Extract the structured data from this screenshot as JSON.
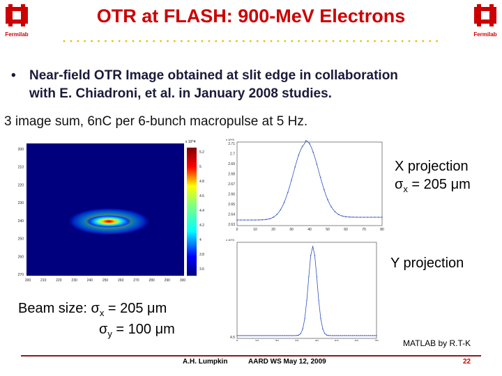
{
  "slide": {
    "title": "OTR at FLASH: 900-MeV Electrons",
    "logo_text": "Fermilab",
    "bullet": "Near-field OTR Image obtained at slit edge in collaboration with E. Chiadroni, et al. in January 2008 studies.",
    "bullet_line1": "Near-field OTR Image obtained at slit edge in collaboration",
    "bullet_line2": "with E. Chiadroni, et al. in January 2008 studies.",
    "subline": "3 image sum, 6nC per 6-bunch macropulse at 5 Hz.",
    "x_projection_label": "X projection",
    "x_sigma": "σx = 205 μm",
    "y_projection_label": "Y projection",
    "beam_size_label": "Beam size: σx = 205 μm",
    "beam_size_y": "σy = 100 μm",
    "matlab_credit": "MATLAB by R.T-K",
    "footer_author": "A.H. Lumpkin",
    "footer_event": "AARD WS May 12, 2009",
    "page_number": "22"
  },
  "colors": {
    "title": "#cc0000",
    "footer_rule": "#8b1a1a",
    "dot": "#e6c000",
    "jet_background": "#00007f"
  },
  "image_plot": {
    "y_ticks": [
      "200",
      "210",
      "220",
      "230",
      "240",
      "250",
      "260",
      "270"
    ],
    "x_ticks": [
      "200",
      "210",
      "220",
      "230",
      "240",
      "250",
      "260",
      "270",
      "280",
      "290",
      "300"
    ],
    "colorbar_exponent": "x 10^4",
    "colorbar_ticks": [
      "5.2",
      "5",
      "4.8",
      "4.6",
      "4.4",
      "4.2",
      "4",
      "3.8",
      "3.6"
    ]
  },
  "x_projection_plot": {
    "exponent": "x 10^5",
    "y_ticks": [
      "2.71",
      "2.7",
      "2.69",
      "2.68",
      "2.67",
      "2.66",
      "2.65",
      "2.64",
      "2.63"
    ],
    "x_ticks": [
      "0",
      "10",
      "20",
      "30",
      "40",
      "50",
      "60",
      "70",
      "80"
    ]
  },
  "y_projection_plot": {
    "exponent": "x 10^5",
    "y_ticks": [
      "",
      "",
      "",
      "",
      "",
      "",
      "",
      "",
      "4.5"
    ],
    "x_ticks": [
      "0",
      "10",
      "20",
      "30",
      "40",
      "50",
      "60",
      "70"
    ]
  }
}
